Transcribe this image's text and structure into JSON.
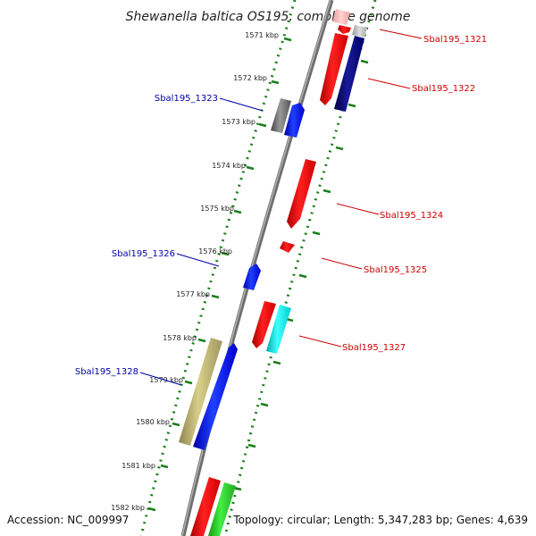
{
  "title": "Shewanella baltica OS195, complete genome",
  "footer": {
    "accession": "Accession: NC_009997",
    "summary": "Topology: circular; Length: 5,347,283 bp; Genes: 4,639"
  },
  "colors": {
    "backbone": "#888888",
    "tick": "#1a7f1a",
    "reverse_label": "#cc0000",
    "forward_label": "#0000aa"
  },
  "kbp_labels": [
    "1571 kbp",
    "1572 kbp",
    "1573 kbp",
    "1574 kbp",
    "1575 kbp",
    "1576 kbp",
    "1577 kbp",
    "1578 kbp",
    "1579 kbp",
    "1580 kbp",
    "1581 kbp",
    "1582 kbp"
  ],
  "gene_labels": [
    {
      "text": "Sbal195_1321",
      "strand": "reverse"
    },
    {
      "text": "Sbal195_1322",
      "strand": "reverse"
    },
    {
      "text": "Sbal195_1323",
      "strand": "forward"
    },
    {
      "text": "Sbal195_1324",
      "strand": "reverse"
    },
    {
      "text": "Sbal195_1325",
      "strand": "reverse"
    },
    {
      "text": "Sbal195_1326",
      "strand": "forward"
    },
    {
      "text": "Sbal195_1327",
      "strand": "reverse"
    },
    {
      "text": "Sbal195_1328",
      "strand": "forward"
    }
  ]
}
